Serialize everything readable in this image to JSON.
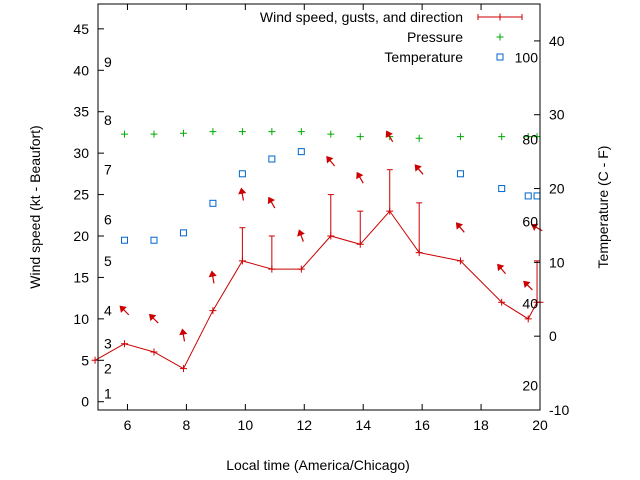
{
  "chart_data": {
    "type": "line",
    "xlabel": "Local time (America/Chicago)",
    "ylabel_left": "Wind speed (kt - Beaufort)",
    "ylabel_right": "Temperature (C - F)",
    "xlim": [
      5,
      20
    ],
    "ylim_left": [
      -1,
      48
    ],
    "ylim_right": [
      -10,
      45
    ],
    "x_ticks": [
      6,
      8,
      10,
      12,
      14,
      16,
      18,
      20
    ],
    "y_ticks_left": [
      0,
      5,
      10,
      15,
      20,
      25,
      30,
      35,
      40,
      45
    ],
    "y_ticks_right": [
      -10,
      0,
      10,
      20,
      30,
      40
    ],
    "beaufort_scale": [
      {
        "label": "1",
        "value": 1
      },
      {
        "label": "2",
        "value": 4
      },
      {
        "label": "3",
        "value": 7
      },
      {
        "label": "4",
        "value": 11
      },
      {
        "label": "5",
        "value": 17
      },
      {
        "label": "6",
        "value": 22
      },
      {
        "label": "7",
        "value": 28
      },
      {
        "label": "8",
        "value": 34
      },
      {
        "label": "9",
        "value": 41
      }
    ],
    "fahrenheit_scale": [
      {
        "label": "20",
        "value": 20
      },
      {
        "label": "40",
        "value": 40
      },
      {
        "label": "60",
        "value": 60
      },
      {
        "label": "80",
        "value": 80
      },
      {
        "label": "100",
        "value": 100
      }
    ],
    "legend": {
      "placement": "top-right",
      "items": [
        {
          "label": "Wind speed, gusts, and direction",
          "color": "#cc0000",
          "marker": "plus-errorbar"
        },
        {
          "label": "Pressure",
          "color": "#00aa00",
          "marker": "plus"
        },
        {
          "label": "Temperature",
          "color": "#0066cc",
          "marker": "square"
        }
      ]
    },
    "series": [
      {
        "name": "Wind speed, gusts, and direction",
        "color": "#cc0000",
        "x": [
          4.9,
          5.9,
          6.9,
          7.9,
          8.9,
          9.9,
          10.9,
          11.9,
          12.9,
          13.9,
          14.9,
          15.9,
          17.3,
          18.7,
          19.6,
          19.9,
          20
        ],
        "y": [
          5,
          7,
          6,
          4,
          11,
          17,
          16,
          16,
          20,
          19,
          23,
          18,
          17,
          12,
          10,
          12,
          12
        ],
        "gust": [
          null,
          null,
          null,
          null,
          null,
          21,
          20,
          null,
          25,
          23,
          28,
          24,
          null,
          null,
          null,
          17,
          null
        ]
      },
      {
        "name": "Pressure",
        "color": "#00aa00",
        "x": [
          5.9,
          6.9,
          7.9,
          8.9,
          9.9,
          10.9,
          11.9,
          12.9,
          13.9,
          14.9,
          15.9,
          17.3,
          18.7,
          19.6,
          19.9
        ],
        "y": [
          32.3,
          32.3,
          32.4,
          32.6,
          32.6,
          32.6,
          32.6,
          32.3,
          32.0,
          32.0,
          31.8,
          32.0,
          32.0,
          32.0,
          32.0
        ]
      },
      {
        "name": "Temperature",
        "color": "#0066cc",
        "axis": "right",
        "x": [
          5.9,
          6.9,
          7.9,
          8.9,
          9.9,
          10.9,
          11.9,
          17.3,
          18.7,
          19.6,
          19.9
        ],
        "y": [
          13,
          13,
          14,
          18,
          22,
          24,
          25,
          22,
          20,
          19,
          19
        ]
      }
    ],
    "wind_direction_arrows": {
      "color": "#cc0000",
      "points": [
        {
          "x": 5.9,
          "y": 11,
          "dir_deg": 315
        },
        {
          "x": 6.9,
          "y": 10,
          "dir_deg": 315
        },
        {
          "x": 7.9,
          "y": 8,
          "dir_deg": 350
        },
        {
          "x": 8.9,
          "y": 15,
          "dir_deg": 350
        },
        {
          "x": 9.9,
          "y": 25,
          "dir_deg": 350
        },
        {
          "x": 10.9,
          "y": 24,
          "dir_deg": 330
        },
        {
          "x": 11.9,
          "y": 20,
          "dir_deg": 340
        },
        {
          "x": 12.9,
          "y": 29,
          "dir_deg": 320
        },
        {
          "x": 13.9,
          "y": 27,
          "dir_deg": 330
        },
        {
          "x": 14.9,
          "y": 32,
          "dir_deg": 330
        },
        {
          "x": 15.9,
          "y": 28,
          "dir_deg": 320
        },
        {
          "x": 17.3,
          "y": 21,
          "dir_deg": 320
        },
        {
          "x": 18.7,
          "y": 16,
          "dir_deg": 320
        },
        {
          "x": 19.6,
          "y": 14,
          "dir_deg": 315
        },
        {
          "x": 19.9,
          "y": 21,
          "dir_deg": 300
        }
      ]
    }
  }
}
